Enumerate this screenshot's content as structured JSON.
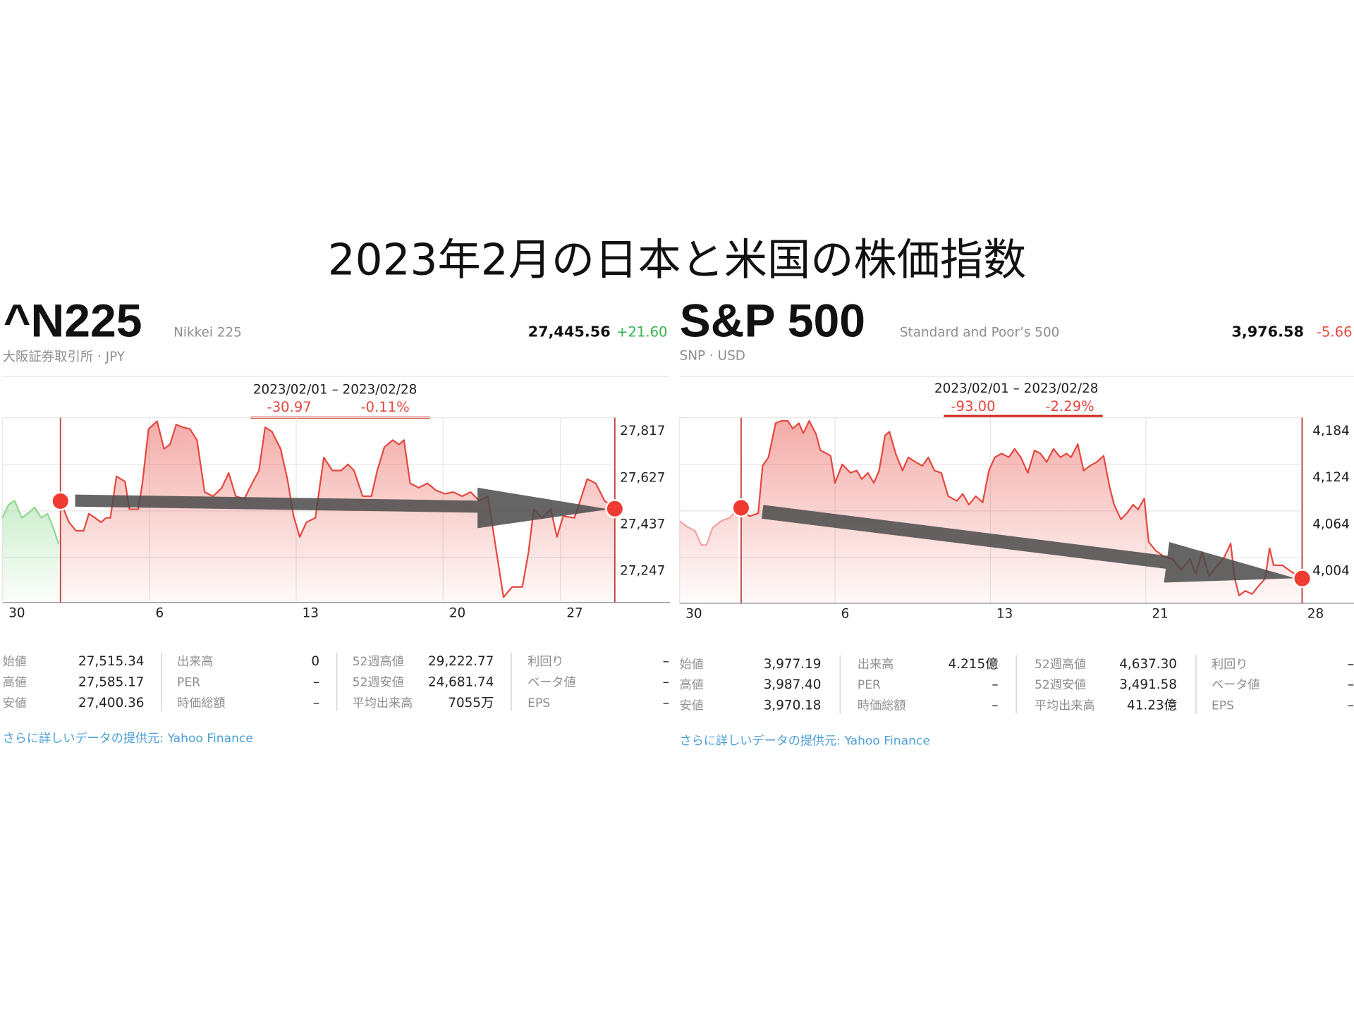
{
  "title": "2023年2月の日本と米国の株価指数",
  "panels": [
    {
      "symbol": "^N225",
      "name": "Nikkei 225",
      "exchange": "大阪証券取引所 · JPY",
      "price": "27,445.56",
      "change": "+21.60",
      "range": "2023/02/01 – 2023/02/28",
      "range_change": "-30.97",
      "range_percent": "-0.11%",
      "stats": [
        [
          [
            "始値",
            "27,515.34"
          ],
          [
            "高値",
            "27,585.17"
          ],
          [
            "安値",
            "27,400.36"
          ]
        ],
        [
          [
            "出来高",
            "0"
          ],
          [
            "PER",
            "–"
          ],
          [
            "時価総額",
            "–"
          ]
        ],
        [
          [
            "52週高値",
            "29,222.77"
          ],
          [
            "52週安値",
            "24,681.74"
          ],
          [
            "平均出来高",
            "7055万"
          ]
        ],
        [
          [
            "利回り",
            "–"
          ],
          [
            "ベータ値",
            "–"
          ],
          [
            "EPS",
            "–"
          ]
        ]
      ],
      "source": "さらに詳しいデータの提供元: Yahoo Finance"
    },
    {
      "symbol": "S&P 500",
      "name": "Standard and Poor’s 500",
      "exchange": "SNP · USD",
      "price": "3,976.58",
      "change": "-5.66",
      "range": "2023/02/01 – 2023/02/28",
      "range_change": "-93.00",
      "range_percent": "-2.29%",
      "stats": [
        [
          [
            "始値",
            "3,977.19"
          ],
          [
            "高値",
            "3,987.40"
          ],
          [
            "安値",
            "3,970.18"
          ]
        ],
        [
          [
            "出来高",
            "4.215億"
          ],
          [
            "PER",
            "–"
          ],
          [
            "時価総額",
            "–"
          ]
        ],
        [
          [
            "52週高値",
            "4,637.30"
          ],
          [
            "52週安値",
            "3,491.58"
          ],
          [
            "平均出来高",
            "41.23億"
          ]
        ],
        [
          [
            "利回り",
            "–"
          ],
          [
            "ベータ値",
            "–"
          ],
          [
            "EPS",
            "–"
          ]
        ]
      ],
      "source": "さらに詳しいデータの提供元: Yahoo Finance"
    }
  ],
  "chart_data": [
    {
      "type": "line",
      "xlim": [
        0,
        20.85
      ],
      "ylim": [
        27064,
        27817
      ],
      "xticks": [
        {
          "value": 0,
          "label": "30"
        },
        {
          "value": 5,
          "label": "6"
        },
        {
          "value": 10,
          "label": "13"
        },
        {
          "value": 15,
          "label": "20"
        },
        {
          "value": 19,
          "label": "27"
        }
      ],
      "yticks": [
        {
          "value": 27817,
          "label": "27,817"
        },
        {
          "value": 27627,
          "label": "27,627"
        },
        {
          "value": 27437,
          "label": "27,437"
        },
        {
          "value": 27247,
          "label": "27,247"
        }
      ],
      "grid": true,
      "series": [
        {
          "color": "#8fd88f",
          "x": [
            0,
            0.2,
            0.41,
            0.65,
            0.85,
            1.09,
            1.32,
            1.53,
            1.73,
            1.91
          ],
          "values": [
            27409,
            27462,
            27479,
            27409,
            27426,
            27451,
            27409,
            27426,
            27367,
            27303
          ]
        },
        {
          "color": "#e5483f",
          "x": [
            1.97,
            2.26,
            2.5,
            2.76,
            2.94,
            3.15,
            3.35,
            3.53,
            3.67,
            3.88,
            4.17,
            4.32,
            4.62,
            4.76,
            4.97,
            5.26,
            5.5,
            5.7,
            5.91,
            6.15,
            6.38,
            6.62,
            6.88,
            7.17,
            7.47,
            7.7,
            7.94,
            8.23,
            8.5,
            8.73,
            8.94,
            9.17,
            9.47,
            9.7,
            9.91,
            10.12,
            10.35,
            10.65,
            10.94,
            11.23,
            11.53,
            11.76,
            11.97,
            12.26,
            12.56,
            12.76,
            13.0,
            13.29,
            13.5,
            13.67,
            13.88,
            14.17,
            14.47,
            14.76,
            15.06,
            15.35,
            15.65,
            15.94,
            16.23,
            16.53,
            16.82,
            17.06,
            17.35,
            17.7,
            17.91,
            18.09,
            18.38,
            18.67,
            18.88,
            19.09,
            19.47,
            19.67,
            19.91,
            20.2,
            20.5,
            20.85
          ],
          "values": [
            27477,
            27391,
            27356,
            27356,
            27426,
            27409,
            27391,
            27409,
            27409,
            27578,
            27557,
            27444,
            27444,
            27550,
            27771,
            27803,
            27690,
            27708,
            27789,
            27778,
            27771,
            27726,
            27514,
            27497,
            27532,
            27592,
            27497,
            27486,
            27550,
            27602,
            27778,
            27761,
            27690,
            27567,
            27416,
            27331,
            27391,
            27409,
            27655,
            27602,
            27602,
            27627,
            27602,
            27497,
            27497,
            27602,
            27697,
            27726,
            27708,
            27726,
            27550,
            27532,
            27550,
            27521,
            27507,
            27514,
            27497,
            27514,
            27479,
            27497,
            27268,
            27085,
            27127,
            27127,
            27268,
            27444,
            27409,
            27444,
            27331,
            27416,
            27409,
            27479,
            27567,
            27550,
            27479,
            27446
          ]
        }
      ]
    },
    {
      "type": "line",
      "xlim": [
        0,
        20.03
      ],
      "ylim": [
        3945,
        4184
      ],
      "xticks": [
        {
          "value": 0,
          "label": "30"
        },
        {
          "value": 5,
          "label": "6"
        },
        {
          "value": 10,
          "label": "13"
        },
        {
          "value": 15,
          "label": "21"
        },
        {
          "value": 20,
          "label": "28"
        }
      ],
      "yticks": [
        {
          "value": 4184,
          "label": "4,184"
        },
        {
          "value": 4124,
          "label": "4,124"
        },
        {
          "value": 4064,
          "label": "4,064"
        },
        {
          "value": 4004,
          "label": "4,004"
        }
      ],
      "grid": true,
      "series": [
        {
          "color": "#f0a3a0",
          "x": [
            0,
            0.23,
            0.5,
            0.7,
            0.86,
            1.06,
            1.34,
            1.61,
            1.89
          ],
          "values": [
            4051,
            4044,
            4038,
            4020,
            4020,
            4042,
            4051,
            4055,
            4068
          ]
        },
        {
          "color": "#e5483f",
          "x": [
            1.98,
            2.25,
            2.53,
            2.67,
            2.86,
            3.09,
            3.28,
            3.48,
            3.64,
            3.84,
            3.98,
            4.17,
            4.39,
            4.53,
            4.73,
            4.86,
            5.0,
            5.23,
            5.5,
            5.7,
            5.86,
            6.06,
            6.25,
            6.42,
            6.61,
            6.75,
            6.95,
            7.17,
            7.36,
            7.59,
            7.81,
            8.0,
            8.2,
            8.42,
            8.64,
            8.92,
            9.11,
            9.31,
            9.53,
            9.75,
            9.95,
            10.14,
            10.36,
            10.59,
            10.78,
            10.98,
            11.2,
            11.42,
            11.61,
            11.81,
            12.03,
            12.25,
            12.45,
            12.59,
            12.81,
            13.0,
            13.2,
            13.42,
            13.64,
            13.84,
            13.98,
            14.2,
            14.39,
            14.59,
            14.75,
            14.95,
            15.09,
            15.31,
            15.59,
            15.86,
            16.14,
            16.42,
            16.61,
            16.81,
            17.03,
            17.31,
            17.53,
            17.73,
            17.86,
            18.0,
            18.2,
            18.42,
            18.64,
            18.84,
            18.98,
            19.11,
            19.39,
            19.67,
            20.03
          ],
          "values": [
            4068,
            4057,
            4061,
            4122,
            4133,
            4177,
            4180,
            4180,
            4170,
            4177,
            4164,
            4180,
            4163,
            4142,
            4138,
            4135,
            4100,
            4124,
            4113,
            4116,
            4105,
            4113,
            4100,
            4116,
            4161,
            4166,
            4138,
            4116,
            4133,
            4127,
            4122,
            4133,
            4116,
            4113,
            4083,
            4077,
            4086,
            4072,
            4083,
            4075,
            4116,
            4133,
            4138,
            4133,
            4144,
            4133,
            4113,
            4142,
            4138,
            4127,
            4144,
            4133,
            4138,
            4133,
            4150,
            4116,
            4122,
            4127,
            4135,
            4094,
            4072,
            4053,
            4061,
            4072,
            4066,
            4080,
            4024,
            4013,
            4005,
            4002,
            3988,
            4002,
            3983,
            4011,
            3980,
            3994,
            4005,
            4022,
            3977,
            3955,
            3961,
            3957,
            3968,
            3977,
            4016,
            3994,
            3994,
            3986,
            3977
          ]
        }
      ]
    }
  ]
}
